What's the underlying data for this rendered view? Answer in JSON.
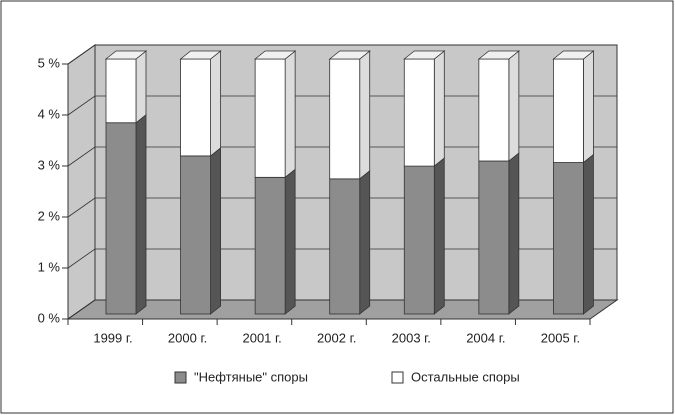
{
  "chart_data": {
    "type": "bar",
    "stacked": true,
    "three_d": true,
    "categories": [
      "1999 г.",
      "2000 г.",
      "2001 г.",
      "2002 г.",
      "2003 г.",
      "2004 г.",
      "2005 г."
    ],
    "series": [
      {
        "name": "\"Нефтяные\" споры",
        "color": "#8c8c8c",
        "values": [
          3.75,
          3.1,
          2.68,
          2.65,
          2.9,
          3.0,
          2.97
        ]
      },
      {
        "name": "Остальные споры",
        "color": "#ffffff",
        "values": [
          1.25,
          1.9,
          2.32,
          2.35,
          2.1,
          2.0,
          2.03
        ]
      }
    ],
    "ylim": [
      0,
      5
    ],
    "yticks": [
      {
        "value": 0,
        "label": "0 %"
      },
      {
        "value": 1,
        "label": "1 %"
      },
      {
        "value": 2,
        "label": "2 %"
      },
      {
        "value": 3,
        "label": "3 %"
      },
      {
        "value": 4,
        "label": "4 %"
      },
      {
        "value": 5,
        "label": "5 %"
      }
    ],
    "grid": true,
    "legend": "bottom"
  }
}
